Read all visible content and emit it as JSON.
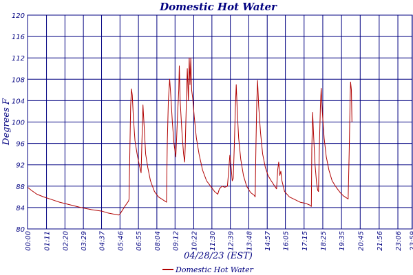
{
  "chart_data": {
    "type": "line",
    "title": "Domestic Hot Water",
    "xlabel": "04/28/23 (EST)",
    "ylabel": "Degrees F",
    "ylim": [
      80,
      120
    ],
    "yticks": [
      80,
      84,
      88,
      92,
      96,
      100,
      104,
      108,
      112,
      116,
      120
    ],
    "xlim": [
      0,
      1440
    ],
    "xticks": [
      {
        "t": 0,
        "label": "00:00"
      },
      {
        "t": 71,
        "label": "01:11"
      },
      {
        "t": 140,
        "label": "02:20"
      },
      {
        "t": 209,
        "label": "03:29"
      },
      {
        "t": 277,
        "label": "04:37"
      },
      {
        "t": 346,
        "label": "05:46"
      },
      {
        "t": 415,
        "label": "06:55"
      },
      {
        "t": 484,
        "label": "08:04"
      },
      {
        "t": 552,
        "label": "09:12"
      },
      {
        "t": 622,
        "label": "10:22"
      },
      {
        "t": 690,
        "label": "11:30"
      },
      {
        "t": 759,
        "label": "12:39"
      },
      {
        "t": 828,
        "label": "13:48"
      },
      {
        "t": 897,
        "label": "14:57"
      },
      {
        "t": 965,
        "label": "16:05"
      },
      {
        "t": 1035,
        "label": "17:15"
      },
      {
        "t": 1105,
        "label": "18:25"
      },
      {
        "t": 1175,
        "label": "19:35"
      },
      {
        "t": 1245,
        "label": "20:45"
      },
      {
        "t": 1316,
        "label": "21:56"
      },
      {
        "t": 1386,
        "label": "23:06"
      },
      {
        "t": 1439,
        "label": "23:59"
      }
    ],
    "grid": true,
    "legend": "bottom",
    "series": [
      {
        "name": "Domestic Hot Water",
        "color": "#b00000",
        "points": [
          [
            0,
            87.8
          ],
          [
            15,
            87.2
          ],
          [
            35,
            86.5
          ],
          [
            60,
            86.0
          ],
          [
            90,
            85.5
          ],
          [
            120,
            85.0
          ],
          [
            160,
            84.5
          ],
          [
            200,
            84.0
          ],
          [
            240,
            83.6
          ],
          [
            280,
            83.3
          ],
          [
            300,
            83.0
          ],
          [
            320,
            82.8
          ],
          [
            340,
            82.6
          ],
          [
            345,
            82.7
          ],
          [
            355,
            83.5
          ],
          [
            365,
            84.3
          ],
          [
            372,
            84.8
          ],
          [
            378,
            85.2
          ],
          [
            380,
            85.6
          ],
          [
            383,
            95.0
          ],
          [
            386,
            103.0
          ],
          [
            389,
            106.2
          ],
          [
            392,
            105.0
          ],
          [
            396,
            101.0
          ],
          [
            402,
            96.5
          ],
          [
            410,
            94.0
          ],
          [
            418,
            92.0
          ],
          [
            425,
            90.5
          ],
          [
            428,
            96.0
          ],
          [
            432,
            103.2
          ],
          [
            436,
            99.5
          ],
          [
            442,
            94.0
          ],
          [
            450,
            91.5
          ],
          [
            460,
            89.0
          ],
          [
            475,
            87.0
          ],
          [
            490,
            86.0
          ],
          [
            505,
            85.5
          ],
          [
            520,
            85.0
          ],
          [
            523,
            96.0
          ],
          [
            527,
            104.0
          ],
          [
            532,
            108.0
          ],
          [
            536,
            105.0
          ],
          [
            542,
            100.0
          ],
          [
            548,
            96.0
          ],
          [
            555,
            93.5
          ],
          [
            558,
            97.0
          ],
          [
            562,
            102.0
          ],
          [
            566,
            106.0
          ],
          [
            568,
            110.5
          ],
          [
            571,
            104.0
          ],
          [
            578,
            98.0
          ],
          [
            584,
            94.0
          ],
          [
            588,
            92.5
          ],
          [
            590,
            95.0
          ],
          [
            594,
            103.0
          ],
          [
            598,
            110.0
          ],
          [
            602,
            104.0
          ],
          [
            605,
            112.0
          ],
          [
            608,
            107.0
          ],
          [
            611,
            112.0
          ],
          [
            614,
            106.0
          ],
          [
            618,
            104.5
          ],
          [
            624,
            101.0
          ],
          [
            632,
            97.0
          ],
          [
            642,
            94.0
          ],
          [
            655,
            91.0
          ],
          [
            670,
            89.0
          ],
          [
            685,
            88.0
          ],
          [
            700,
            87.0
          ],
          [
            712,
            86.5
          ],
          [
            718,
            87.5
          ],
          [
            728,
            88.0
          ],
          [
            738,
            87.8
          ],
          [
            748,
            88.0
          ],
          [
            753,
            91.0
          ],
          [
            757,
            93.8
          ],
          [
            762,
            91.5
          ],
          [
            766,
            89.0
          ],
          [
            770,
            89.5
          ],
          [
            774,
            96.0
          ],
          [
            778,
            103.0
          ],
          [
            781,
            107.0
          ],
          [
            785,
            102.0
          ],
          [
            790,
            97.0
          ],
          [
            798,
            93.0
          ],
          [
            808,
            90.0
          ],
          [
            820,
            88.0
          ],
          [
            835,
            86.8
          ],
          [
            848,
            86.3
          ],
          [
            852,
            86.0
          ],
          [
            855,
            96.0
          ],
          [
            858,
            104.0
          ],
          [
            861,
            107.8
          ],
          [
            865,
            103.0
          ],
          [
            872,
            98.0
          ],
          [
            880,
            94.0
          ],
          [
            890,
            91.5
          ],
          [
            900,
            90.0
          ],
          [
            912,
            89.0
          ],
          [
            925,
            88.0
          ],
          [
            932,
            87.5
          ],
          [
            936,
            91.0
          ],
          [
            940,
            92.5
          ],
          [
            944,
            90.0
          ],
          [
            948,
            90.8
          ],
          [
            952,
            89.0
          ],
          [
            962,
            87.0
          ],
          [
            980,
            86.0
          ],
          [
            1000,
            85.5
          ],
          [
            1020,
            85.0
          ],
          [
            1040,
            84.8
          ],
          [
            1055,
            84.5
          ],
          [
            1062,
            84.2
          ],
          [
            1064,
            95.0
          ],
          [
            1067,
            101.8
          ],
          [
            1071,
            97.0
          ],
          [
            1076,
            92.0
          ],
          [
            1082,
            88.5
          ],
          [
            1086,
            87.2
          ],
          [
            1089,
            87.0
          ],
          [
            1092,
            95.0
          ],
          [
            1096,
            103.0
          ],
          [
            1099,
            106.3
          ],
          [
            1103,
            102.0
          ],
          [
            1110,
            97.0
          ],
          [
            1118,
            93.5
          ],
          [
            1128,
            91.0
          ],
          [
            1140,
            89.0
          ],
          [
            1155,
            87.8
          ],
          [
            1170,
            86.8
          ],
          [
            1182,
            86.2
          ],
          [
            1194,
            85.8
          ],
          [
            1200,
            85.6
          ],
          [
            1204,
            95.0
          ],
          [
            1207,
            104.0
          ],
          [
            1209,
            107.5
          ],
          [
            1212,
            106.0
          ],
          [
            1214,
            100.0
          ]
        ]
      }
    ]
  }
}
